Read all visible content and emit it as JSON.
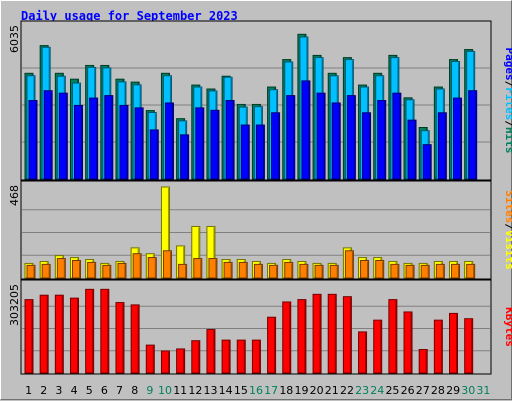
{
  "chart_data": {
    "type": "bar",
    "title": "Daily usage for September 2023",
    "days": [
      "1",
      "2",
      "3",
      "4",
      "5",
      "6",
      "7",
      "8",
      "9",
      "10",
      "11",
      "12",
      "13",
      "14",
      "15",
      "16",
      "17",
      "18",
      "19",
      "20",
      "21",
      "22",
      "23",
      "24",
      "25",
      "26",
      "27",
      "28",
      "29",
      "30",
      "31"
    ],
    "weekend_days": [
      "9",
      "10",
      "16",
      "17",
      "23",
      "24",
      "30",
      "31"
    ],
    "panels": [
      {
        "key": "hits_files_pages",
        "y_max": 6035,
        "y_max_label": "6035",
        "axis_label": [
          "Pages",
          "Files",
          "Hits"
        ],
        "axis_label_sep": "/",
        "series": [
          {
            "name": "Hits",
            "color": "#00805c",
            "values": [
              4310,
              5440,
              4310,
              4070,
              4630,
              4630,
              4070,
              3950,
              2790,
              4310,
              2460,
              3830,
              3670,
              4190,
              3040,
              3040,
              3750,
              4870,
              5900,
              5040,
              4310,
              4950,
              3830,
              4310,
              5040,
              3310,
              2100,
              3750,
              4870,
              5280,
              null
            ]
          },
          {
            "name": "Files",
            "color": "#00c0ff",
            "values": [
              4210,
              5370,
              4190,
              3910,
              4550,
              4530,
              3960,
              3840,
              2710,
              4210,
              2370,
              3750,
              3590,
              4150,
              2930,
              2950,
              3640,
              4770,
              5790,
              4950,
              4210,
              4870,
              3750,
              4210,
              4950,
              3230,
              1970,
              3670,
              4790,
              5200,
              null
            ]
          },
          {
            "name": "Pages",
            "color": "#0000ff",
            "values": [
              3200,
              3600,
              3500,
              3000,
              3300,
              3400,
              3000,
              2900,
              2000,
              3100,
              1800,
              2900,
              2800,
              3200,
              2200,
              2200,
              2700,
              3400,
              4000,
              3500,
              3100,
              3400,
              2700,
              3200,
              3500,
              2400,
              1400,
              2700,
              3300,
              3600,
              null
            ]
          }
        ]
      },
      {
        "key": "sites_visits",
        "y_max": 468,
        "y_max_label": "468",
        "axis_label": [
          "Sites",
          "Visits"
        ],
        "axis_label_sep": "/",
        "series": [
          {
            "name": "Visits",
            "color": "#ffff00",
            "values": [
              75,
              85,
              115,
              105,
              95,
              75,
              85,
              155,
              125,
              468,
              165,
              265,
              265,
              95,
              95,
              85,
              75,
              95,
              85,
              75,
              75,
              155,
              105,
              105,
              85,
              75,
              75,
              85,
              85,
              85,
              null
            ]
          },
          {
            "name": "Sites",
            "color": "#ff8000",
            "values": [
              65,
              70,
              100,
              90,
              80,
              65,
              75,
              125,
              105,
              140,
              70,
              100,
              100,
              80,
              80,
              70,
              65,
              80,
              70,
              65,
              65,
              140,
              90,
              90,
              70,
              65,
              65,
              70,
              70,
              70,
              null
            ]
          }
        ]
      },
      {
        "key": "kbytes",
        "y_max": 303205,
        "y_max_label": "303205",
        "axis_label": [
          "KBytes"
        ],
        "axis_label_sep": "/",
        "series": [
          {
            "name": "KBytes",
            "color": "#ff0000",
            "values": [
              250000,
              265000,
              265000,
              255000,
              285000,
              285000,
              240000,
              232000,
              95000,
              75000,
              82000,
              110000,
              148000,
              112000,
              112000,
              112000,
              190000,
              242000,
              250000,
              268000,
              268000,
              260000,
              140000,
              180000,
              250000,
              208000,
              80000,
              180000,
              203000,
              185000,
              null
            ]
          }
        ]
      }
    ]
  },
  "colors": {
    "title": "#0000ff",
    "weekday_label": "#000000",
    "weekend_label": "#00805c",
    "plot_bg": "#c0c0c0",
    "grid": "#808080"
  }
}
